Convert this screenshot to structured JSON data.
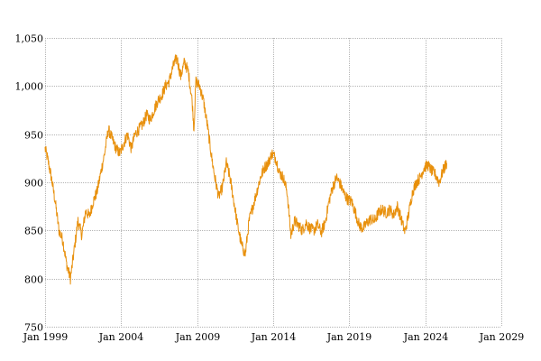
{
  "chart_data": {
    "type": "line",
    "title": "",
    "xlabel": "",
    "ylabel": "",
    "xlim": [
      "1999-01-01",
      "2029-01-01"
    ],
    "ylim": [
      750,
      1050
    ],
    "grid": true,
    "x_ticks": [
      "Jan 1999",
      "Jan 2004",
      "Jan 2009",
      "Jan 2014",
      "Jan 2019",
      "Jan 2024",
      "Jan 2029"
    ],
    "y_ticks": [
      "750",
      "800",
      "850",
      "900",
      "950",
      "1,000",
      "1,050"
    ],
    "colors": {
      "series": "#e8900c",
      "grid": "#b4b4b4",
      "text": "#000000"
    },
    "series": [
      {
        "x": [
          "1999-01-01",
          "1999-03-01",
          "1999-06-01",
          "1999-09-01",
          "1999-12-01",
          "2000-03-01",
          "2000-06-01",
          "2000-09-01",
          "2000-12-01",
          "2001-03-01",
          "2001-06-01",
          "2001-09-01",
          "2001-12-01",
          "2002-03-01",
          "2002-06-01",
          "2002-09-01",
          "2002-12-01",
          "2003-03-01",
          "2003-06-01",
          "2003-09-01",
          "2003-12-01",
          "2004-03-01",
          "2004-06-01",
          "2004-09-01",
          "2004-12-01",
          "2005-03-01",
          "2005-06-01",
          "2005-09-01",
          "2005-12-01",
          "2006-03-01",
          "2006-06-01",
          "2006-09-01",
          "2006-12-01",
          "2007-03-01",
          "2007-06-01",
          "2007-09-01",
          "2007-12-01",
          "2008-03-01",
          "2008-06-01",
          "2008-09-01",
          "2008-10-15",
          "2008-12-01",
          "2009-03-01",
          "2009-06-01",
          "2009-09-01",
          "2009-12-01",
          "2010-03-01",
          "2010-06-01",
          "2010-09-01",
          "2010-12-01",
          "2011-03-01",
          "2011-06-01",
          "2011-09-01",
          "2011-12-01",
          "2012-03-01",
          "2012-06-01",
          "2012-09-01",
          "2012-12-01",
          "2013-03-01",
          "2013-06-01",
          "2013-09-01",
          "2013-12-01",
          "2014-03-01",
          "2014-06-01",
          "2014-09-01",
          "2014-12-01",
          "2015-03-01",
          "2015-06-01",
          "2015-09-01",
          "2015-12-01",
          "2016-03-01",
          "2016-06-01",
          "2016-09-01",
          "2016-12-01",
          "2017-03-01",
          "2017-06-01",
          "2017-09-01",
          "2017-12-01",
          "2018-03-01",
          "2018-06-01",
          "2018-09-01",
          "2018-12-01",
          "2019-03-01",
          "2019-06-01",
          "2019-09-01",
          "2019-12-01",
          "2020-03-01",
          "2020-06-01",
          "2020-09-01",
          "2020-12-01",
          "2021-03-01",
          "2021-06-01",
          "2021-09-01",
          "2021-12-01",
          "2022-03-01",
          "2022-06-01",
          "2022-09-01",
          "2022-12-01",
          "2023-03-01",
          "2023-06-01",
          "2023-09-01",
          "2023-12-01",
          "2024-03-01",
          "2024-06-01",
          "2024-09-01",
          "2024-12-01",
          "2025-03-01",
          "2025-06-01"
        ],
        "values": [
          935,
          925,
          905,
          880,
          850,
          840,
          815,
          800,
          830,
          860,
          845,
          870,
          865,
          880,
          890,
          910,
          930,
          955,
          945,
          935,
          930,
          940,
          950,
          935,
          950,
          955,
          960,
          970,
          965,
          975,
          985,
          990,
          1000,
          1005,
          1020,
          1030,
          1010,
          1025,
          1015,
          985,
          955,
          1005,
          1000,
          985,
          960,
          930,
          905,
          885,
          895,
          920,
          905,
          880,
          855,
          835,
          825,
          860,
          875,
          890,
          905,
          915,
          920,
          930,
          925,
          910,
          905,
          890,
          845,
          860,
          855,
          850,
          858,
          852,
          850,
          856,
          848,
          858,
          880,
          895,
          905,
          898,
          888,
          882,
          880,
          868,
          855,
          852,
          858,
          862,
          860,
          868,
          872,
          868,
          872,
          866,
          875,
          862,
          848,
          868,
          890,
          900,
          905,
          915,
          918,
          912,
          908,
          900,
          912,
          920
        ]
      }
    ]
  }
}
